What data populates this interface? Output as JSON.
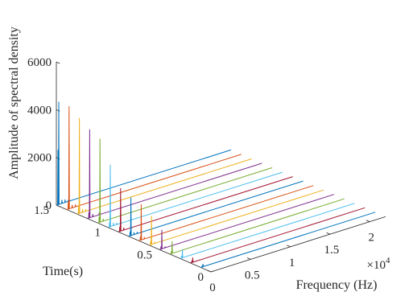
{
  "chart_data": {
    "type": "line",
    "projection": "3d-waterfall",
    "xlabel": "Frequency (Hz)",
    "ylabel": "Time(s)",
    "zlabel": "Amplitude of spectral density",
    "x_exponent_label": "×10",
    "x_exponent_power": "4",
    "xlim": [
      0,
      2.2
    ],
    "ylim": [
      0,
      1.5
    ],
    "zlim": [
      0,
      6000
    ],
    "x_ticks": [
      0,
      0.5,
      1,
      1.5,
      2
    ],
    "x_tick_labels": [
      "0",
      "0.5",
      "1",
      "1.5",
      "2"
    ],
    "y_ticks": [
      0,
      0.5,
      1,
      1.5
    ],
    "y_tick_labels": [
      "0",
      "0.5",
      "1",
      "1.5"
    ],
    "z_ticks": [
      0,
      2000,
      4000,
      6000
    ],
    "z_tick_labels": [
      "0",
      "2000",
      "4000",
      "6000"
    ],
    "grid": false,
    "legend": "none",
    "series_colors": [
      "#0072BD",
      "#D95319",
      "#EDB120",
      "#7E2F8E",
      "#77AC30",
      "#4DBEEE",
      "#A2142F",
      "#0072BD",
      "#D95319",
      "#EDB120",
      "#7E2F8E",
      "#77AC30",
      "#4DBEEE",
      "#A2142F",
      "#0072BD"
    ],
    "series": [
      {
        "time": 1.5,
        "peaks": [
          {
            "x": 0.02,
            "z": 2300
          },
          {
            "x": 0.03,
            "z": 4300
          },
          {
            "x": 0.07,
            "z": 150
          },
          {
            "x": 0.11,
            "z": 120
          },
          {
            "x": 0.15,
            "z": 60
          }
        ]
      },
      {
        "time": 1.4,
        "peaks": [
          {
            "x": 0.02,
            "z": 300
          },
          {
            "x": 0.03,
            "z": 4300
          },
          {
            "x": 0.07,
            "z": 120
          },
          {
            "x": 0.11,
            "z": 100
          }
        ]
      },
      {
        "time": 1.3,
        "peaks": [
          {
            "x": 0.02,
            "z": 300
          },
          {
            "x": 0.03,
            "z": 4000
          },
          {
            "x": 0.07,
            "z": 140
          },
          {
            "x": 0.11,
            "z": 90
          }
        ]
      },
      {
        "time": 1.2,
        "peaks": [
          {
            "x": 0.02,
            "z": 250
          },
          {
            "x": 0.03,
            "z": 3700
          },
          {
            "x": 0.07,
            "z": 110
          },
          {
            "x": 0.15,
            "z": 80
          }
        ]
      },
      {
        "time": 1.1,
        "peaks": [
          {
            "x": 0.02,
            "z": 250
          },
          {
            "x": 0.03,
            "z": 3500
          },
          {
            "x": 0.07,
            "z": 100
          }
        ]
      },
      {
        "time": 1.0,
        "peaks": [
          {
            "x": 0.02,
            "z": 200
          },
          {
            "x": 0.03,
            "z": 2600
          },
          {
            "x": 0.07,
            "z": 120
          },
          {
            "x": 0.11,
            "z": 80
          }
        ]
      },
      {
        "time": 0.9,
        "peaks": [
          {
            "x": 0.02,
            "z": 200
          },
          {
            "x": 0.03,
            "z": 1800
          },
          {
            "x": 0.07,
            "z": 100
          }
        ]
      },
      {
        "time": 0.8,
        "peaks": [
          {
            "x": 0.02,
            "z": 180
          },
          {
            "x": 0.03,
            "z": 1600
          },
          {
            "x": 0.07,
            "z": 90
          },
          {
            "x": 0.11,
            "z": 70
          }
        ]
      },
      {
        "time": 0.7,
        "peaks": [
          {
            "x": 0.02,
            "z": 150
          },
          {
            "x": 0.03,
            "z": 1500
          },
          {
            "x": 0.07,
            "z": 80
          }
        ]
      },
      {
        "time": 0.6,
        "peaks": [
          {
            "x": 0.02,
            "z": 150
          },
          {
            "x": 0.03,
            "z": 1200
          },
          {
            "x": 0.07,
            "z": 70
          }
        ]
      },
      {
        "time": 0.5,
        "peaks": [
          {
            "x": 0.02,
            "z": 120
          },
          {
            "x": 0.03,
            "z": 800
          },
          {
            "x": 0.07,
            "z": 60
          }
        ]
      },
      {
        "time": 0.4,
        "peaks": [
          {
            "x": 0.02,
            "z": 100
          },
          {
            "x": 0.03,
            "z": 500
          }
        ]
      },
      {
        "time": 0.3,
        "peaks": [
          {
            "x": 0.02,
            "z": 100
          },
          {
            "x": 0.03,
            "z": 350
          }
        ]
      },
      {
        "time": 0.2,
        "peaks": [
          {
            "x": 0.02,
            "z": 80
          },
          {
            "x": 0.03,
            "z": 200
          }
        ]
      },
      {
        "time": 0.1,
        "peaks": [
          {
            "x": 0.02,
            "z": 60
          },
          {
            "x": 0.03,
            "z": 120
          }
        ]
      }
    ]
  }
}
